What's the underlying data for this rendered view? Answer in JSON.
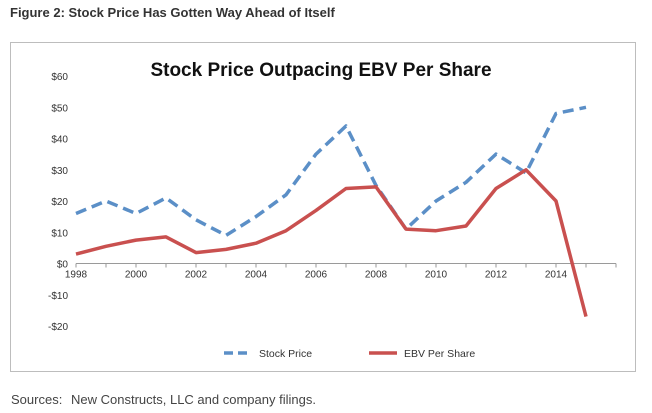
{
  "figure_title": "Figure 2: Stock Price Has Gotten Way Ahead of Itself",
  "sources": {
    "label": "Sources:",
    "text": "New Constructs, LLC and company filings."
  },
  "chart_data": {
    "type": "line",
    "title": "Stock Price Outpacing EBV Per Share",
    "xlabel": "",
    "ylabel": "",
    "x": [
      1998,
      1999,
      2000,
      2001,
      2002,
      2003,
      2004,
      2005,
      2006,
      2007,
      2008,
      2009,
      2010,
      2011,
      2012,
      2013,
      2014,
      2015
    ],
    "xticks": [
      1998,
      2000,
      2002,
      2004,
      2006,
      2008,
      2010,
      2012,
      2014
    ],
    "xlim": [
      1998,
      2016
    ],
    "ylim": [
      -20,
      60
    ],
    "yticks": [
      -20,
      -10,
      0,
      10,
      20,
      30,
      40,
      50,
      60
    ],
    "ytick_labels": [
      "-$20",
      "-$10",
      "$0",
      "$10",
      "$20",
      "$30",
      "$40",
      "$50",
      "$60"
    ],
    "legend_position": "bottom",
    "grid": false,
    "series": [
      {
        "name": "Stock Price",
        "color": "#5b8fc7",
        "dash": "dashed",
        "values": [
          16,
          20,
          16,
          21,
          14,
          9,
          15,
          22,
          35,
          44,
          25,
          11,
          20,
          26,
          35,
          29,
          48,
          50
        ]
      },
      {
        "name": "EBV Per Share",
        "color": "#c9504f",
        "dash": "solid",
        "values": [
          3,
          5.5,
          7.5,
          8.5,
          3.5,
          4.5,
          6.5,
          10.5,
          17,
          24,
          24.5,
          11,
          10.5,
          12,
          24,
          30,
          20,
          -17
        ]
      }
    ]
  }
}
